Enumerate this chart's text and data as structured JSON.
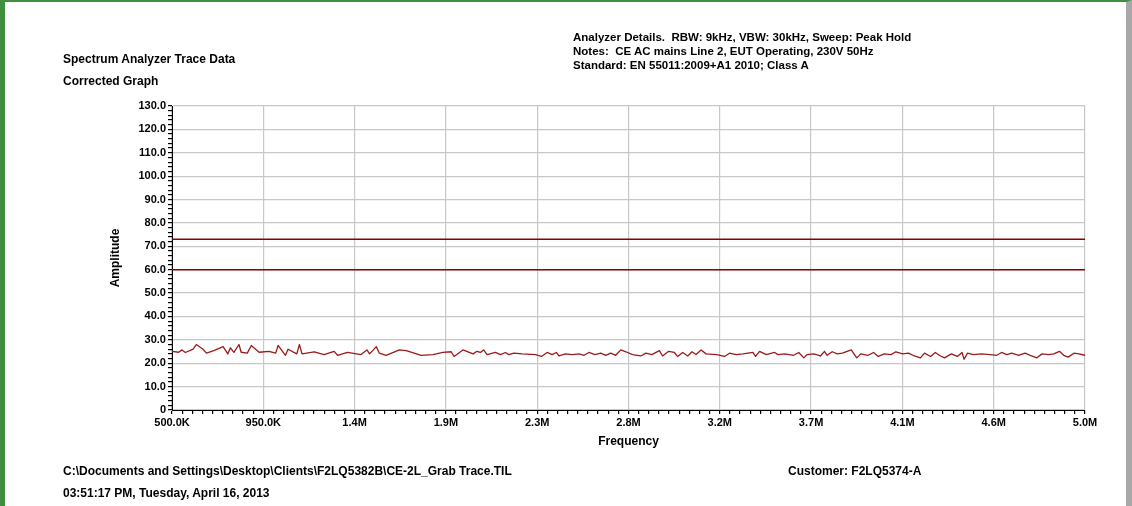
{
  "chart_data": {
    "type": "line",
    "title": "Spectrum Analyzer Trace Data",
    "subtitle": "Corrected Graph",
    "xlabel": "Frequency",
    "ylabel": "Amplitude",
    "annotations": [
      "Analyzer Details.  RBW: 9kHz, VBW: 30kHz, Sweep: Peak Hold",
      "Notes:  CE AC mains Line 2, EUT Operating, 230V 50Hz",
      "Standard: EN 55011:2009+A1 2010; Class A",
      "C:\\Documents and Settings\\Desktop\\Clients\\F2LQ5382B\\CE-2L_Grab Trace.TIL",
      "03:51:17 PM, Tuesday, April 16, 2013",
      "Customer: F2LQ5374-A"
    ],
    "x": [
      500000,
      533000,
      549000,
      566000,
      604000,
      620000,
      653000,
      670000,
      706000,
      752000,
      775000,
      788000,
      805000,
      830000,
      841000,
      871000,
      891000,
      929000,
      978000,
      1011000,
      1023000,
      1059000,
      1072000,
      1115000,
      1128000,
      1141000,
      1201000,
      1250000,
      1299000,
      1316000,
      1365000,
      1431000,
      1461000,
      1474000,
      1507000,
      1522000,
      1555000,
      1621000,
      1654000,
      1682000,
      1728000,
      1786000,
      1835000,
      1876000,
      1890000,
      1934000,
      1984000,
      2003000,
      2020000,
      2036000,
      2053000,
      2094000,
      2119000,
      2143000,
      2160000,
      2185000,
      2226000,
      2292000,
      2321000,
      2349000,
      2374000,
      2394000,
      2407000,
      2440000,
      2473000,
      2506000,
      2531000,
      2555000,
      2585000,
      2613000,
      2638000,
      2662000,
      2687000,
      2712000,
      2737000,
      2770000,
      2811000,
      2836000,
      2865000,
      2902000,
      2918000,
      2948000,
      2976000,
      2992000,
      3017000,
      3042000,
      3063000,
      3083000,
      3108000,
      3132000,
      3185000,
      3223000,
      3248000,
      3281000,
      3314000,
      3363000,
      3376000,
      3396000,
      3429000,
      3470000,
      3487000,
      3520000,
      3564000,
      3589000,
      3614000,
      3630000,
      3663000,
      3696000,
      3716000,
      3729000,
      3754000,
      3779000,
      3804000,
      3848000,
      3875000,
      3895000,
      3931000,
      3958000,
      3981000,
      4011000,
      4044000,
      4068000,
      4101000,
      4130000,
      4159000,
      4189000,
      4209000,
      4239000,
      4262000,
      4288000,
      4308000,
      4341000,
      4371000,
      4394000,
      4404000,
      4421000,
      4449000,
      4490000,
      4532000,
      4565000,
      4589000,
      4614000,
      4639000,
      4672000,
      4705000,
      4730000,
      4763000,
      4788000,
      4821000,
      4846000,
      4874000,
      4895000,
      4917000,
      4945000,
      4970000,
      5000000
    ],
    "values": [
      25.1,
      24.7,
      25.7,
      24.6,
      26.0,
      28.0,
      26.0,
      24.3,
      25.4,
      27.1,
      24.0,
      26.6,
      24.6,
      28.0,
      24.7,
      24.3,
      27.6,
      24.7,
      25.1,
      24.3,
      27.6,
      23.4,
      26.0,
      24.0,
      28.0,
      24.0,
      24.9,
      23.7,
      25.1,
      23.4,
      24.6,
      23.7,
      25.7,
      24.0,
      27.1,
      24.3,
      23.4,
      25.7,
      25.4,
      24.6,
      23.4,
      23.7,
      24.6,
      24.9,
      22.9,
      25.7,
      24.0,
      25.1,
      24.6,
      25.7,
      23.7,
      24.6,
      23.7,
      24.6,
      23.7,
      24.3,
      24.0,
      23.7,
      22.9,
      24.6,
      23.7,
      24.6,
      23.1,
      24.0,
      23.7,
      24.0,
      23.4,
      24.6,
      23.7,
      24.3,
      23.4,
      24.3,
      23.4,
      25.7,
      24.9,
      23.7,
      23.1,
      24.3,
      23.7,
      25.4,
      23.1,
      25.1,
      24.6,
      22.9,
      24.6,
      23.1,
      24.9,
      23.7,
      25.7,
      24.0,
      23.7,
      22.9,
      24.3,
      23.7,
      24.0,
      24.6,
      22.9,
      25.1,
      23.7,
      24.6,
      23.7,
      24.0,
      23.4,
      24.6,
      22.3,
      23.7,
      24.0,
      23.1,
      25.1,
      23.4,
      24.9,
      24.0,
      24.3,
      25.7,
      22.3,
      24.0,
      23.4,
      24.6,
      22.9,
      24.0,
      23.7,
      24.9,
      24.0,
      24.3,
      23.1,
      22.3,
      24.3,
      22.9,
      24.6,
      23.1,
      22.3,
      24.0,
      22.9,
      24.6,
      21.7,
      24.3,
      23.7,
      24.0,
      23.7,
      23.4,
      24.6,
      23.7,
      24.3,
      23.4,
      24.3,
      23.4,
      22.3,
      24.0,
      23.7,
      24.0,
      25.1,
      23.4,
      22.6,
      24.3,
      24.0,
      23.4
    ],
    "color": "#9b1b1b",
    "marker": "none",
    "line_style": "solid",
    "xlim": [
      500000,
      5000000
    ],
    "xticks": [
      {
        "value": 500000,
        "label": "500.0K"
      },
      {
        "value": 550000,
        "label": null
      },
      {
        "value": 600000,
        "label": null
      },
      {
        "value": 650000,
        "label": null
      },
      {
        "value": 700000,
        "label": null
      },
      {
        "value": 750000,
        "label": null
      },
      {
        "value": 800000,
        "label": null
      },
      {
        "value": 850000,
        "label": null
      },
      {
        "value": 900000,
        "label": null
      },
      {
        "value": 950000,
        "label": "950.0K"
      },
      {
        "value": 1000000,
        "label": null
      },
      {
        "value": 1050000,
        "label": null
      },
      {
        "value": 1100000,
        "label": null
      },
      {
        "value": 1150000,
        "label": null
      },
      {
        "value": 1200000,
        "label": null
      },
      {
        "value": 1250000,
        "label": null
      },
      {
        "value": 1300000,
        "label": null
      },
      {
        "value": 1350000,
        "label": null
      },
      {
        "value": 1400000,
        "label": "1.4M"
      },
      {
        "value": 1450000,
        "label": null
      },
      {
        "value": 1500000,
        "label": null
      },
      {
        "value": 1550000,
        "label": null
      },
      {
        "value": 1600000,
        "label": null
      },
      {
        "value": 1650000,
        "label": null
      },
      {
        "value": 1700000,
        "label": null
      },
      {
        "value": 1750000,
        "label": null
      },
      {
        "value": 1800000,
        "label": null
      },
      {
        "value": 1850000,
        "label": "1.9M"
      },
      {
        "value": 1900000,
        "label": null
      },
      {
        "value": 1950000,
        "label": null
      },
      {
        "value": 2000000,
        "label": null
      },
      {
        "value": 2050000,
        "label": null
      },
      {
        "value": 2100000,
        "label": null
      },
      {
        "value": 2150000,
        "label": null
      },
      {
        "value": 2200000,
        "label": null
      },
      {
        "value": 2250000,
        "label": null
      },
      {
        "value": 2300000,
        "label": "2.3M"
      },
      {
        "value": 2350000,
        "label": null
      },
      {
        "value": 2400000,
        "label": null
      },
      {
        "value": 2450000,
        "label": null
      },
      {
        "value": 2500000,
        "label": null
      },
      {
        "value": 2550000,
        "label": null
      },
      {
        "value": 2600000,
        "label": null
      },
      {
        "value": 2650000,
        "label": null
      },
      {
        "value": 2700000,
        "label": null
      },
      {
        "value": 2750000,
        "label": "2.8M"
      },
      {
        "value": 2800000,
        "label": null
      },
      {
        "value": 2850000,
        "label": null
      },
      {
        "value": 2900000,
        "label": null
      },
      {
        "value": 2950000,
        "label": null
      },
      {
        "value": 3000000,
        "label": null
      },
      {
        "value": 3050000,
        "label": null
      },
      {
        "value": 3100000,
        "label": null
      },
      {
        "value": 3150000,
        "label": null
      },
      {
        "value": 3200000,
        "label": "3.2M"
      },
      {
        "value": 3250000,
        "label": null
      },
      {
        "value": 3300000,
        "label": null
      },
      {
        "value": 3350000,
        "label": null
      },
      {
        "value": 3400000,
        "label": null
      },
      {
        "value": 3450000,
        "label": null
      },
      {
        "value": 3500000,
        "label": null
      },
      {
        "value": 3550000,
        "label": null
      },
      {
        "value": 3600000,
        "label": null
      },
      {
        "value": 3650000,
        "label": "3.7M"
      },
      {
        "value": 3700000,
        "label": null
      },
      {
        "value": 3750000,
        "label": null
      },
      {
        "value": 3800000,
        "label": null
      },
      {
        "value": 3850000,
        "label": null
      },
      {
        "value": 3900000,
        "label": null
      },
      {
        "value": 3950000,
        "label": null
      },
      {
        "value": 4000000,
        "label": null
      },
      {
        "value": 4050000,
        "label": null
      },
      {
        "value": 4100000,
        "label": "4.1M"
      },
      {
        "value": 4150000,
        "label": null
      },
      {
        "value": 4200000,
        "label": null
      },
      {
        "value": 4250000,
        "label": null
      },
      {
        "value": 4300000,
        "label": null
      },
      {
        "value": 4350000,
        "label": null
      },
      {
        "value": 4400000,
        "label": null
      },
      {
        "value": 4450000,
        "label": null
      },
      {
        "value": 4500000,
        "label": null
      },
      {
        "value": 4550000,
        "label": "4.6M"
      },
      {
        "value": 4600000,
        "label": null
      },
      {
        "value": 4650000,
        "label": null
      },
      {
        "value": 4700000,
        "label": null
      },
      {
        "value": 4750000,
        "label": null
      },
      {
        "value": 4800000,
        "label": null
      },
      {
        "value": 4850000,
        "label": null
      },
      {
        "value": 4900000,
        "label": null
      },
      {
        "value": 4950000,
        "label": null
      },
      {
        "value": 5000000,
        "label": "5.0M"
      }
    ],
    "ylim": [
      0,
      130
    ],
    "yticks": [
      0,
      {
        "value": 2,
        "label": null
      },
      {
        "value": 4,
        "label": null
      },
      {
        "value": 6,
        "label": null
      },
      {
        "value": 8,
        "label": null
      },
      {
        "value": 10,
        "label": "10.0"
      },
      {
        "value": 12,
        "label": null
      },
      {
        "value": 14,
        "label": null
      },
      {
        "value": 16,
        "label": null
      },
      {
        "value": 18,
        "label": null
      },
      {
        "value": 20,
        "label": "20.0"
      },
      {
        "value": 22,
        "label": null
      },
      {
        "value": 24,
        "label": null
      },
      {
        "value": 26,
        "label": null
      },
      {
        "value": 28,
        "label": null
      },
      {
        "value": 30,
        "label": "30.0"
      },
      {
        "value": 32,
        "label": null
      },
      {
        "value": 34,
        "label": null
      },
      {
        "value": 36,
        "label": null
      },
      {
        "value": 38,
        "label": null
      },
      {
        "value": 40,
        "label": "40.0"
      },
      {
        "value": 42,
        "label": null
      },
      {
        "value": 44,
        "label": null
      },
      {
        "value": 46,
        "label": null
      },
      {
        "value": 48,
        "label": null
      },
      {
        "value": 50,
        "label": "50.0"
      },
      {
        "value": 52,
        "label": null
      },
      {
        "value": 54,
        "label": null
      },
      {
        "value": 56,
        "label": null
      },
      {
        "value": 58,
        "label": null
      },
      {
        "value": 60,
        "label": "60.0"
      },
      {
        "value": 62,
        "label": null
      },
      {
        "value": 64,
        "label": null
      },
      {
        "value": 66,
        "label": null
      },
      {
        "value": 68,
        "label": null
      },
      {
        "value": 70,
        "label": "70.0"
      },
      {
        "value": 72,
        "label": null
      },
      {
        "value": 74,
        "label": null
      },
      {
        "value": 76,
        "label": null
      },
      {
        "value": 78,
        "label": null
      },
      {
        "value": 80,
        "label": "80.0"
      },
      {
        "value": 82,
        "label": null
      },
      {
        "value": 84,
        "label": null
      },
      {
        "value": 86,
        "label": null
      },
      {
        "value": 88,
        "label": null
      },
      {
        "value": 90,
        "label": "90.0"
      },
      {
        "value": 92,
        "label": null
      },
      {
        "value": 94,
        "label": null
      },
      {
        "value": 96,
        "label": null
      },
      {
        "value": 98,
        "label": null
      },
      {
        "value": 100,
        "label": "100.0"
      },
      {
        "value": 102,
        "label": null
      },
      {
        "value": 104,
        "label": null
      },
      {
        "value": 106,
        "label": null
      },
      {
        "value": 108,
        "label": null
      },
      {
        "value": 110,
        "label": "110.0"
      },
      {
        "value": 112,
        "label": null
      },
      {
        "value": 114,
        "label": null
      },
      {
        "value": 116,
        "label": null
      },
      {
        "value": 118,
        "label": null
      },
      {
        "value": 120,
        "label": "120.0"
      },
      {
        "value": 122,
        "label": null
      },
      {
        "value": 124,
        "label": null
      },
      {
        "value": 126,
        "label": null
      },
      {
        "value": 128,
        "label": null
      },
      {
        "value": 130,
        "label": "130.0"
      }
    ],
    "grid": true,
    "ref_lines": [
      {
        "axis": "y",
        "value": 73,
        "color": "#8b0000"
      },
      {
        "axis": "y",
        "value": 60,
        "color": "#8b0000"
      }
    ]
  }
}
